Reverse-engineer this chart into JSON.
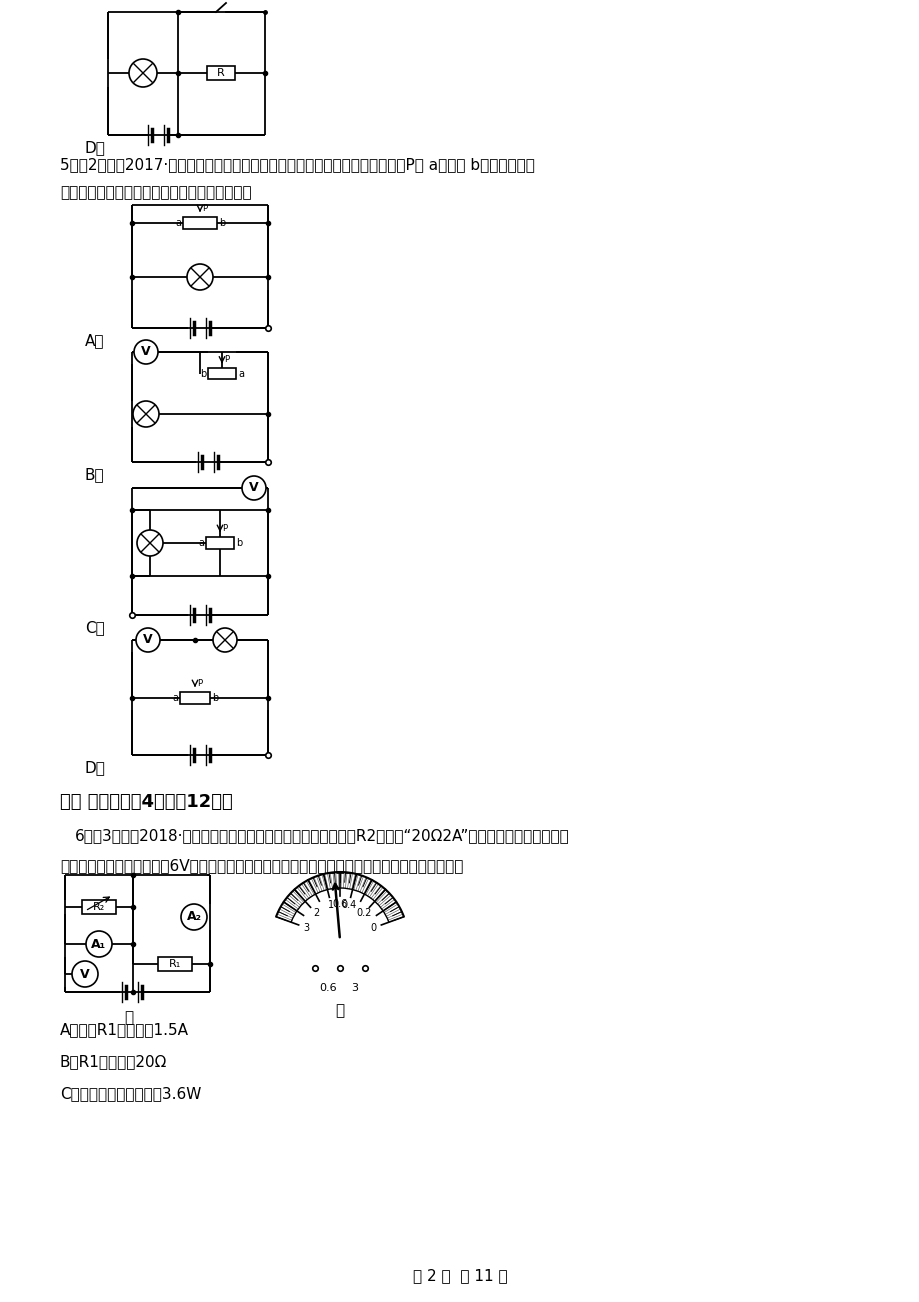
{
  "page_width": 9.2,
  "page_height": 13.02,
  "bg_color": "#ffffff",
  "dpi": 100,
  "texts": {
    "D_label_top": "D．",
    "q5_line1": "5．（2分）（2017·繁昌模拟）如图所示的四幅电路图中，在滑动变阵器的滑片P从 a端滑到 b端的过程中，",
    "q5_line2": "灯从亮变暗且电压表示数从小变大的是（　　）",
    "label_A": "A．",
    "label_B": "B．",
    "label_C": "C．",
    "label_D_q5": "D．",
    "section2": "二、 多选题（关4题；內12分）",
    "q6_line1": "6．（3分）（2018·河北模拟）如图甲电路中，电源电压不变，R2规格为“20Ω2A”，闭合开关，将滑片移到",
    "q6_line2": "某一位置时，电压表示数为6V，两块电流表指针的位置均如图乙所示，下列说法正确的是（　　）",
    "jia": "甲",
    "yi": "乙",
    "q6_A": "A．通过R1的电流为1.5A",
    "q6_B": "B．R1的电阵为20Ω",
    "q6_C": "C．电路的最小总功率是3.6W",
    "footer": "第 2 页  八 11 页"
  }
}
